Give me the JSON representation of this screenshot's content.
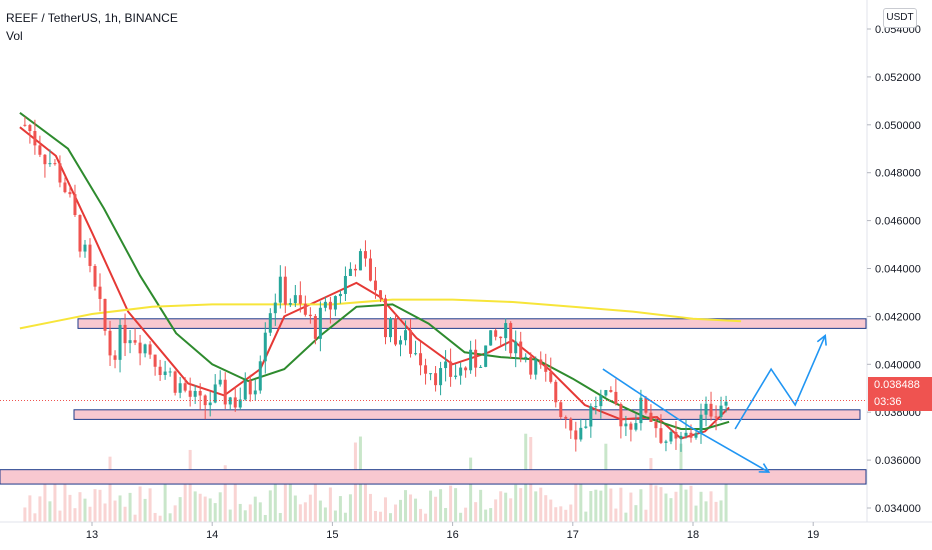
{
  "header": {
    "symbol_line": "REEF / TetherUS, 1h, BINANCE",
    "volume_label": "Vol"
  },
  "currency_button": "USDT",
  "price_axis": {
    "ticks": [
      "0.054000",
      "0.052000",
      "0.050000",
      "0.048000",
      "0.046000",
      "0.044000",
      "0.042000",
      "0.040000",
      "0.038000",
      "0.036000",
      "0.034000"
    ]
  },
  "time_axis": {
    "ticks": [
      "13",
      "14",
      "15",
      "16",
      "17",
      "18",
      "19"
    ]
  },
  "last_price": {
    "value": "0.038488",
    "countdown": "03:36"
  },
  "colors": {
    "up": "#26a69a",
    "down": "#ef5350",
    "ma_fast": "#e53935",
    "ma_slow": "#2e8b2e",
    "ma_long": "#f7e53a",
    "zone_fill": "#f8c8d0",
    "zone_border": "#1e3a8a",
    "arrow": "#2196f3"
  },
  "chart_data": {
    "type": "candlestick",
    "symbol": "REEF / TetherUS",
    "timeframe": "1h",
    "exchange": "BINANCE",
    "y_range": [
      0.0329,
      0.0552
    ],
    "x_range": [
      12.4,
      19.4
    ],
    "x_ticks": [
      13,
      14,
      15,
      16,
      17,
      18,
      19
    ],
    "last_price": 0.038488,
    "closes": [
      {
        "t": 12.45,
        "c": 0.05
      },
      {
        "t": 12.6,
        "c": 0.0488
      },
      {
        "t": 12.75,
        "c": 0.0478
      },
      {
        "t": 12.9,
        "c": 0.0452
      },
      {
        "t": 13.05,
        "c": 0.0425
      },
      {
        "t": 13.15,
        "c": 0.0405
      },
      {
        "t": 13.3,
        "c": 0.0415
      },
      {
        "t": 13.45,
        "c": 0.0408
      },
      {
        "t": 13.6,
        "c": 0.0398
      },
      {
        "t": 13.75,
        "c": 0.039
      },
      {
        "t": 13.9,
        "c": 0.0382
      },
      {
        "t": 14.05,
        "c": 0.0388
      },
      {
        "t": 14.2,
        "c": 0.0385
      },
      {
        "t": 14.35,
        "c": 0.0392
      },
      {
        "t": 14.45,
        "c": 0.042
      },
      {
        "t": 14.55,
        "c": 0.0432
      },
      {
        "t": 14.7,
        "c": 0.0425
      },
      {
        "t": 14.85,
        "c": 0.0415
      },
      {
        "t": 14.95,
        "c": 0.0422
      },
      {
        "t": 15.05,
        "c": 0.043
      },
      {
        "t": 15.2,
        "c": 0.0445
      },
      {
        "t": 15.35,
        "c": 0.0435
      },
      {
        "t": 15.45,
        "c": 0.0415
      },
      {
        "t": 15.6,
        "c": 0.041
      },
      {
        "t": 15.75,
        "c": 0.0402
      },
      {
        "t": 15.9,
        "c": 0.0395
      },
      {
        "t": 16.05,
        "c": 0.0397
      },
      {
        "t": 16.2,
        "c": 0.0402
      },
      {
        "t": 16.35,
        "c": 0.041
      },
      {
        "t": 16.45,
        "c": 0.0412
      },
      {
        "t": 16.6,
        "c": 0.0405
      },
      {
        "t": 16.75,
        "c": 0.0395
      },
      {
        "t": 16.9,
        "c": 0.0382
      },
      {
        "t": 17.05,
        "c": 0.0372
      },
      {
        "t": 17.2,
        "c": 0.0385
      },
      {
        "t": 17.35,
        "c": 0.0382
      },
      {
        "t": 17.45,
        "c": 0.0375
      },
      {
        "t": 17.6,
        "c": 0.0383
      },
      {
        "t": 17.75,
        "c": 0.037
      },
      {
        "t": 17.85,
        "c": 0.0365
      },
      {
        "t": 18.0,
        "c": 0.0372
      },
      {
        "t": 18.15,
        "c": 0.0382
      },
      {
        "t": 18.3,
        "c": 0.0385
      }
    ],
    "moving_averages": [
      {
        "color": "red",
        "points": [
          [
            12.4,
            0.0499
          ],
          [
            12.7,
            0.0487
          ],
          [
            13.0,
            0.0455
          ],
          [
            13.3,
            0.0422
          ],
          [
            13.5,
            0.041
          ],
          [
            13.8,
            0.0392
          ],
          [
            14.1,
            0.0387
          ],
          [
            14.4,
            0.0398
          ],
          [
            14.6,
            0.042
          ],
          [
            14.9,
            0.0427
          ],
          [
            15.2,
            0.0434
          ],
          [
            15.4,
            0.0428
          ],
          [
            15.7,
            0.0411
          ],
          [
            16.0,
            0.04
          ],
          [
            16.3,
            0.0405
          ],
          [
            16.5,
            0.041
          ],
          [
            16.8,
            0.0398
          ],
          [
            17.1,
            0.0383
          ],
          [
            17.4,
            0.0377
          ],
          [
            17.7,
            0.0378
          ],
          [
            17.9,
            0.0369
          ],
          [
            18.1,
            0.0372
          ],
          [
            18.3,
            0.0382
          ]
        ]
      },
      {
        "color": "green",
        "points": [
          [
            12.4,
            0.0505
          ],
          [
            12.8,
            0.049
          ],
          [
            13.1,
            0.0465
          ],
          [
            13.4,
            0.0437
          ],
          [
            13.7,
            0.0413
          ],
          [
            14.0,
            0.04
          ],
          [
            14.3,
            0.0393
          ],
          [
            14.6,
            0.0398
          ],
          [
            14.9,
            0.0412
          ],
          [
            15.2,
            0.0424
          ],
          [
            15.5,
            0.0425
          ],
          [
            15.8,
            0.0417
          ],
          [
            16.1,
            0.0405
          ],
          [
            16.4,
            0.0403
          ],
          [
            16.7,
            0.0402
          ],
          [
            17.0,
            0.0394
          ],
          [
            17.3,
            0.0385
          ],
          [
            17.6,
            0.0378
          ],
          [
            17.9,
            0.0373
          ],
          [
            18.1,
            0.0373
          ],
          [
            18.3,
            0.0376
          ]
        ]
      },
      {
        "color": "yellow",
        "points": [
          [
            12.4,
            0.0415
          ],
          [
            12.7,
            0.0418
          ],
          [
            13.0,
            0.0421
          ],
          [
            13.5,
            0.0424
          ],
          [
            14.0,
            0.0425
          ],
          [
            14.5,
            0.0425
          ],
          [
            15.0,
            0.0425
          ],
          [
            15.5,
            0.0427
          ],
          [
            16.0,
            0.0427
          ],
          [
            16.5,
            0.0426
          ],
          [
            17.0,
            0.0424
          ],
          [
            17.5,
            0.0422
          ],
          [
            18.0,
            0.0419
          ],
          [
            18.4,
            0.0418
          ]
        ]
      }
    ],
    "zones": [
      {
        "low": 0.0415,
        "high": 0.0419
      },
      {
        "low": 0.0377,
        "high": 0.0381
      },
      {
        "low": 0.035,
        "high": 0.0356
      }
    ],
    "projection_arrows": [
      [
        [
          18.35,
          0.0373
        ],
        [
          18.65,
          0.0398
        ],
        [
          18.85,
          0.0383
        ],
        [
          19.1,
          0.0412
        ]
      ],
      [
        [
          17.25,
          0.0398
        ],
        [
          17.97,
          0.0374
        ],
        [
          18.63,
          0.0355
        ]
      ]
    ]
  }
}
